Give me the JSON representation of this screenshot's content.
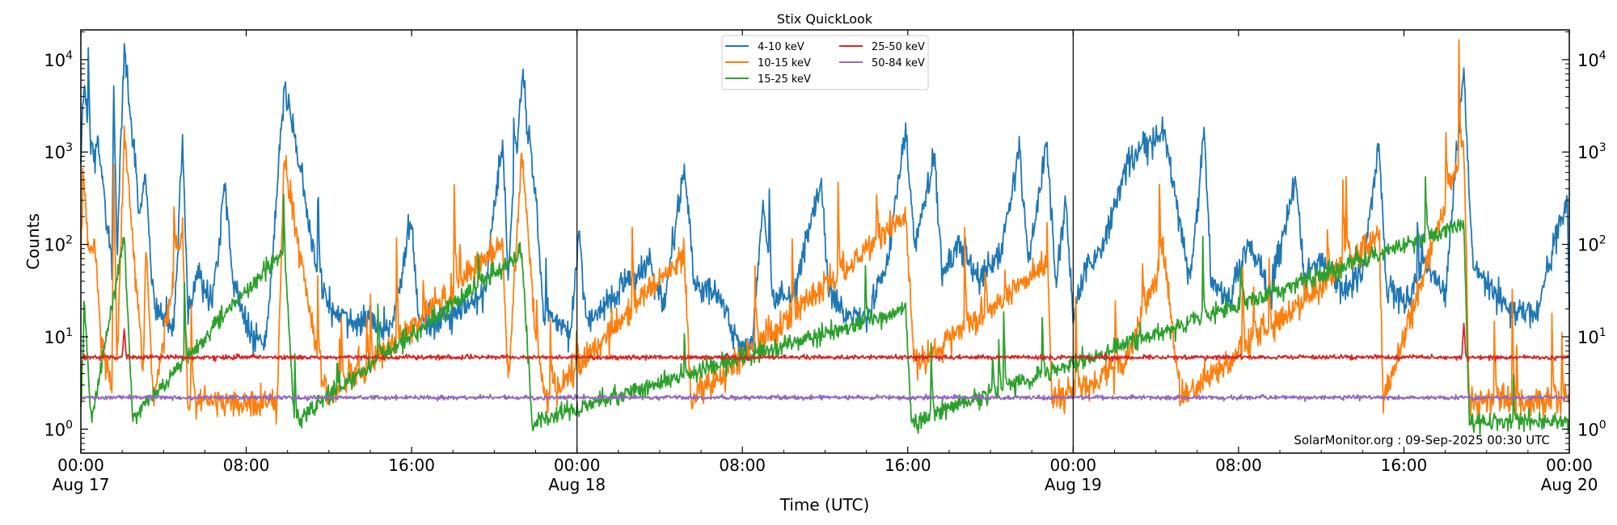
{
  "chart_data": {
    "type": "line",
    "title": "Stix QuickLook",
    "xlabel": "Time (UTC)",
    "ylabel": "Counts",
    "yscale": "log",
    "ylim": [
      0.55,
      21000
    ],
    "xlim": [
      "2025-08-17T00:00",
      "2025-08-20T00:00"
    ],
    "grid": false,
    "legend_position": "top-center",
    "annotation": "SolarMonitor.org : 09-Sep-2025 00:30 UTC",
    "day_separators": [
      "2025-08-18T00:00",
      "2025-08-19T00:00"
    ],
    "x_ticks": [
      {
        "time": "2025-08-17T00:00",
        "label": "00:00",
        "sublabel": "Aug 17"
      },
      {
        "time": "2025-08-17T08:00",
        "label": "08:00",
        "sublabel": ""
      },
      {
        "time": "2025-08-17T16:00",
        "label": "16:00",
        "sublabel": ""
      },
      {
        "time": "2025-08-18T00:00",
        "label": "00:00",
        "sublabel": "Aug 18"
      },
      {
        "time": "2025-08-18T08:00",
        "label": "08:00",
        "sublabel": ""
      },
      {
        "time": "2025-08-18T16:00",
        "label": "16:00",
        "sublabel": ""
      },
      {
        "time": "2025-08-19T00:00",
        "label": "00:00",
        "sublabel": "Aug 19"
      },
      {
        "time": "2025-08-19T08:00",
        "label": "08:00",
        "sublabel": ""
      },
      {
        "time": "2025-08-19T16:00",
        "label": "16:00",
        "sublabel": ""
      },
      {
        "time": "2025-08-20T00:00",
        "label": "00:00",
        "sublabel": "Aug 20"
      }
    ],
    "y_ticks": [
      {
        "value": 1,
        "base": "10",
        "exp": "0"
      },
      {
        "value": 10,
        "base": "10",
        "exp": "1"
      },
      {
        "value": 100,
        "base": "10",
        "exp": "2"
      },
      {
        "value": 1000,
        "base": "10",
        "exp": "3"
      },
      {
        "value": 10000,
        "base": "10",
        "exp": "4"
      }
    ],
    "series": [
      {
        "name": "4-10 keV",
        "color": "#1f77b4",
        "points": [
          [
            "2025-08-17T00:00",
            1000
          ],
          [
            "2025-08-17T00:10",
            6000
          ],
          [
            "2025-08-17T00:30",
            900
          ],
          [
            "2025-08-17T00:50",
            1200
          ],
          [
            "2025-08-17T01:10",
            300
          ],
          [
            "2025-08-17T01:30",
            60
          ],
          [
            "2025-08-17T01:35",
            6000
          ],
          [
            "2025-08-17T01:45",
            80
          ],
          [
            "2025-08-17T02:06",
            13000
          ],
          [
            "2025-08-17T02:30",
            1500
          ],
          [
            "2025-08-17T02:50",
            220
          ],
          [
            "2025-08-17T03:10",
            600
          ],
          [
            "2025-08-17T03:25",
            40
          ],
          [
            "2025-08-17T03:40",
            15
          ],
          [
            "2025-08-17T04:30",
            12
          ],
          [
            "2025-08-17T04:55",
            1500
          ],
          [
            "2025-08-17T05:10",
            20
          ],
          [
            "2025-08-17T05:40",
            50
          ],
          [
            "2025-08-17T06:20",
            20
          ],
          [
            "2025-08-17T07:00",
            500
          ],
          [
            "2025-08-17T07:20",
            40
          ],
          [
            "2025-08-17T08:00",
            15
          ],
          [
            "2025-08-17T09:00",
            10
          ],
          [
            "2025-08-17T09:50",
            5000
          ],
          [
            "2025-08-17T10:30",
            1000
          ],
          [
            "2025-08-17T11:10",
            100
          ],
          [
            "2025-08-17T12:00",
            20
          ],
          [
            "2025-08-17T13:00",
            10
          ],
          [
            "2025-08-17T14:00",
            20
          ],
          [
            "2025-08-17T15:00",
            12
          ],
          [
            "2025-08-17T16:00",
            180
          ],
          [
            "2025-08-17T16:20",
            15
          ],
          [
            "2025-08-17T17:30",
            20
          ],
          [
            "2025-08-17T18:30",
            15
          ],
          [
            "2025-08-17T19:30",
            30
          ],
          [
            "2025-08-17T20:24",
            1200
          ],
          [
            "2025-08-17T20:40",
            50
          ],
          [
            "2025-08-17T21:20",
            7000
          ],
          [
            "2025-08-17T22:00",
            300
          ],
          [
            "2025-08-17T22:24",
            15
          ],
          [
            "2025-08-17T23:00",
            20
          ],
          [
            "2025-08-17T23:40",
            12
          ],
          [
            "2025-08-18T00:06",
            140
          ],
          [
            "2025-08-18T00:30",
            10
          ],
          [
            "2025-08-18T01:30",
            25
          ],
          [
            "2025-08-18T02:30",
            40
          ],
          [
            "2025-08-18T03:30",
            60
          ],
          [
            "2025-08-18T04:10",
            20
          ],
          [
            "2025-08-18T05:12",
            700
          ],
          [
            "2025-08-18T05:40",
            40
          ],
          [
            "2025-08-18T06:30",
            30
          ],
          [
            "2025-08-18T07:30",
            12
          ],
          [
            "2025-08-18T08:30",
            10
          ],
          [
            "2025-08-18T09:00",
            280
          ],
          [
            "2025-08-18T09:30",
            20
          ],
          [
            "2025-08-18T10:30",
            30
          ],
          [
            "2025-08-18T11:48",
            500
          ],
          [
            "2025-08-18T12:10",
            30
          ],
          [
            "2025-08-18T13:00",
            15
          ],
          [
            "2025-08-18T14:00",
            20
          ],
          [
            "2025-08-18T15:00",
            60
          ],
          [
            "2025-08-18T15:54",
            1700
          ],
          [
            "2025-08-18T16:20",
            100
          ],
          [
            "2025-08-18T17:18",
            850
          ],
          [
            "2025-08-18T17:40",
            50
          ],
          [
            "2025-08-18T18:30",
            100
          ],
          [
            "2025-08-18T19:30",
            40
          ],
          [
            "2025-08-18T20:30",
            80
          ],
          [
            "2025-08-18T21:24",
            1100
          ],
          [
            "2025-08-18T21:50",
            60
          ],
          [
            "2025-08-18T22:42",
            1400
          ],
          [
            "2025-08-18T23:10",
            40
          ],
          [
            "2025-08-18T23:40",
            300
          ],
          [
            "2025-08-19T00:00",
            15
          ],
          [
            "2025-08-19T00:40",
            60
          ],
          [
            "2025-08-19T01:30",
            100
          ],
          [
            "2025-08-19T02:30",
            600
          ],
          [
            "2025-08-19T03:20",
            1200
          ],
          [
            "2025-08-19T04:24",
            1700
          ],
          [
            "2025-08-19T05:00",
            300
          ],
          [
            "2025-08-19T05:40",
            40
          ],
          [
            "2025-08-19T06:20",
            1900
          ],
          [
            "2025-08-19T06:40",
            40
          ],
          [
            "2025-08-19T07:30",
            25
          ],
          [
            "2025-08-19T08:30",
            100
          ],
          [
            "2025-08-19T09:30",
            30
          ],
          [
            "2025-08-19T10:48",
            500
          ],
          [
            "2025-08-19T11:10",
            40
          ],
          [
            "2025-08-19T12:00",
            80
          ],
          [
            "2025-08-19T13:00",
            30
          ],
          [
            "2025-08-19T14:00",
            50
          ],
          [
            "2025-08-19T14:48",
            1300
          ],
          [
            "2025-08-19T15:10",
            30
          ],
          [
            "2025-08-19T16:00",
            20
          ],
          [
            "2025-08-19T17:00",
            60
          ],
          [
            "2025-08-19T18:00",
            30
          ],
          [
            "2025-08-19T18:54",
            7500
          ],
          [
            "2025-08-19T19:20",
            60
          ],
          [
            "2025-08-19T20:30",
            30
          ],
          [
            "2025-08-19T21:30",
            15
          ],
          [
            "2025-08-19T22:30",
            20
          ],
          [
            "2025-08-19T23:54",
            330
          ],
          [
            "2025-08-20T00:00",
            20
          ]
        ]
      },
      {
        "name": "10-15 keV",
        "color": "#ff7f0e",
        "points": [
          [
            "2025-08-17T00:00",
            60
          ],
          [
            "2025-08-17T00:06",
            600
          ],
          [
            "2025-08-17T00:25",
            60
          ],
          [
            "2025-08-17T00:40",
            130
          ],
          [
            "2025-08-17T01:00",
            8
          ],
          [
            "2025-08-17T01:30",
            3
          ],
          [
            "2025-08-17T01:35",
            800
          ],
          [
            "2025-08-17T01:45",
            5
          ],
          [
            "2025-08-17T02:06",
            1700
          ],
          [
            "2025-08-17T02:40",
            40
          ],
          [
            "2025-08-17T03:00",
            5
          ],
          [
            "2025-08-17T03:10",
            100
          ],
          [
            "2025-08-17T03:30",
            2
          ],
          [
            "2025-08-17T04:55",
            150
          ],
          [
            "2025-08-17T05:10",
            2
          ],
          [
            "2025-08-17T09:30",
            2
          ],
          [
            "2025-08-17T09:50",
            900
          ],
          [
            "2025-08-17T10:40",
            60
          ],
          [
            "2025-08-17T11:30",
            5
          ],
          [
            "2025-08-17T12:00",
            2
          ],
          [
            "2025-08-17T20:24",
            100
          ],
          [
            "2025-08-17T20:40",
            3
          ],
          [
            "2025-08-17T21:20",
            1000
          ],
          [
            "2025-08-17T22:00",
            10
          ],
          [
            "2025-08-17T22:30",
            2
          ],
          [
            "2025-08-18T05:12",
            80
          ],
          [
            "2025-08-18T05:30",
            2
          ],
          [
            "2025-08-18T15:54",
            200
          ],
          [
            "2025-08-18T16:20",
            5
          ],
          [
            "2025-08-18T22:42",
            60
          ],
          [
            "2025-08-18T23:00",
            2
          ],
          [
            "2025-08-19T02:30",
            5
          ],
          [
            "2025-08-19T04:24",
            80
          ],
          [
            "2025-08-19T05:10",
            2
          ],
          [
            "2025-08-19T14:48",
            120
          ],
          [
            "2025-08-19T15:00",
            2
          ],
          [
            "2025-08-19T18:54",
            1200
          ],
          [
            "2025-08-19T19:10",
            2
          ],
          [
            "2025-08-20T00:00",
            2
          ]
        ]
      },
      {
        "name": "15-25 keV",
        "color": "#2ca02c",
        "points": [
          [
            "2025-08-17T00:00",
            1.5
          ],
          [
            "2025-08-17T00:10",
            25
          ],
          [
            "2025-08-17T00:30",
            1.2
          ],
          [
            "2025-08-17T02:06",
            120
          ],
          [
            "2025-08-17T02:30",
            1.3
          ],
          [
            "2025-08-17T09:50",
            90
          ],
          [
            "2025-08-17T10:20",
            1.2
          ],
          [
            "2025-08-17T21:20",
            80
          ],
          [
            "2025-08-17T21:50",
            1.2
          ],
          [
            "2025-08-18T15:54",
            20
          ],
          [
            "2025-08-18T16:10",
            1.2
          ],
          [
            "2025-08-19T18:54",
            170
          ],
          [
            "2025-08-19T19:10",
            1.2
          ],
          [
            "2025-08-20T00:00",
            1.2
          ]
        ]
      },
      {
        "name": "25-50 keV",
        "color": "#d62728",
        "points": [
          [
            "2025-08-17T00:00",
            6
          ],
          [
            "2025-08-17T02:00",
            6
          ],
          [
            "2025-08-17T02:06",
            12
          ],
          [
            "2025-08-17T02:12",
            6
          ],
          [
            "2025-08-19T18:48",
            6
          ],
          [
            "2025-08-19T18:54",
            14
          ],
          [
            "2025-08-19T19:00",
            6
          ],
          [
            "2025-08-20T00:00",
            6
          ]
        ]
      },
      {
        "name": "50-84 keV",
        "color": "#9467bd",
        "points": [
          [
            "2025-08-17T00:00",
            2.2
          ],
          [
            "2025-08-20T00:00",
            2.2
          ]
        ]
      }
    ]
  }
}
